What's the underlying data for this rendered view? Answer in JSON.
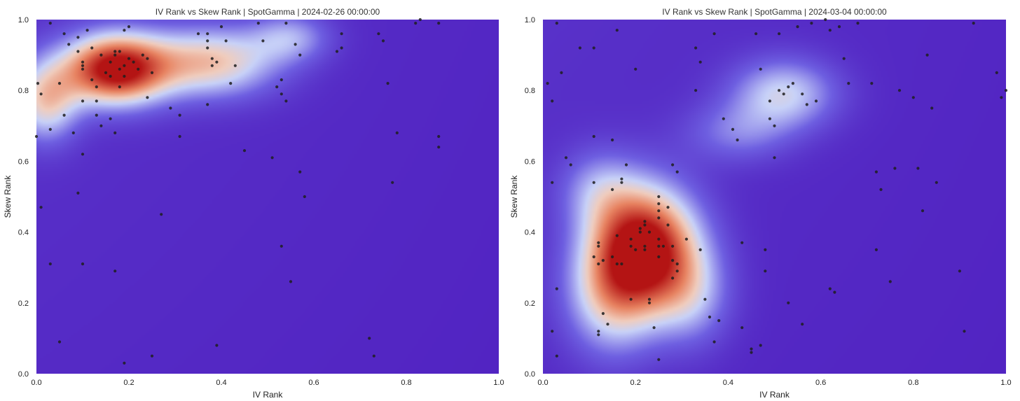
{
  "colors": {
    "low": "#5020c0",
    "mid": "#c8d2f8",
    "high": "#b41414",
    "point": "#1e1e1e"
  },
  "chart_data": [
    {
      "type": "scatter",
      "overlay": "density-heatmap (coolwarm-like colormap)",
      "title": "IV Rank vs Skew Rank | SpotGamma | 2024-02-26 00:00:00",
      "xlabel": "IV Rank",
      "ylabel": "Skew Rank",
      "xlim": [
        0,
        1
      ],
      "ylim": [
        0,
        1
      ],
      "xticks": [
        "0.0",
        "0.2",
        "0.4",
        "0.6",
        "0.8",
        "1.0"
      ],
      "yticks": [
        "0.0",
        "0.2",
        "0.4",
        "0.6",
        "0.8",
        "1.0"
      ],
      "grid": false,
      "legend": "none",
      "density_peaks": [
        {
          "x": 0.17,
          "y": 0.86,
          "weight": 1.0,
          "sx": 0.08,
          "sy": 0.07
        },
        {
          "x": 0.38,
          "y": 0.88,
          "weight": 0.55,
          "sx": 0.1,
          "sy": 0.07
        },
        {
          "x": 0.02,
          "y": 0.77,
          "weight": 0.5,
          "sx": 0.05,
          "sy": 0.08
        },
        {
          "x": 0.55,
          "y": 0.95,
          "weight": 0.3,
          "sx": 0.06,
          "sy": 0.05
        }
      ],
      "points": [
        [
          0.003,
          0.82
        ],
        [
          0.01,
          0.79
        ],
        [
          0.03,
          0.99
        ],
        [
          0.03,
          0.69
        ],
        [
          0.05,
          0.82
        ],
        [
          0.06,
          0.96
        ],
        [
          0.07,
          0.93
        ],
        [
          0.08,
          0.68
        ],
        [
          0.06,
          0.73
        ],
        [
          0.09,
          0.95
        ],
        [
          0.09,
          0.91
        ],
        [
          0.1,
          0.87
        ],
        [
          0.1,
          0.86
        ],
        [
          0.1,
          0.88
        ],
        [
          0.11,
          0.97
        ],
        [
          0.12,
          0.83
        ],
        [
          0.12,
          0.92
        ],
        [
          0.13,
          0.81
        ],
        [
          0.13,
          0.77
        ],
        [
          0.13,
          0.73
        ],
        [
          0.14,
          0.9
        ],
        [
          0.15,
          0.85
        ],
        [
          0.16,
          0.84
        ],
        [
          0.16,
          0.88
        ],
        [
          0.17,
          0.9
        ],
        [
          0.17,
          0.91
        ],
        [
          0.18,
          0.91
        ],
        [
          0.18,
          0.86
        ],
        [
          0.19,
          0.84
        ],
        [
          0.19,
          0.87
        ],
        [
          0.2,
          0.89
        ],
        [
          0.21,
          0.88
        ],
        [
          0.22,
          0.86
        ],
        [
          0.18,
          0.81
        ],
        [
          0.19,
          0.97
        ],
        [
          0.2,
          0.98
        ],
        [
          0.23,
          0.9
        ],
        [
          0.24,
          0.89
        ],
        [
          0.25,
          0.85
        ],
        [
          0.24,
          0.78
        ],
        [
          0.16,
          0.72
        ],
        [
          0.14,
          0.7
        ],
        [
          0.17,
          0.68
        ],
        [
          0.1,
          0.77
        ],
        [
          0.1,
          0.62
        ],
        [
          0.09,
          0.51
        ],
        [
          0.01,
          0.47
        ],
        [
          0.03,
          0.31
        ],
        [
          0.1,
          0.31
        ],
        [
          0.17,
          0.29
        ],
        [
          0.05,
          0.09
        ],
        [
          0.19,
          0.03
        ],
        [
          0.25,
          0.05
        ],
        [
          0.27,
          0.45
        ],
        [
          0.29,
          0.75
        ],
        [
          0.31,
          0.73
        ],
        [
          0.31,
          0.67
        ],
        [
          0.35,
          0.96
        ],
        [
          0.37,
          0.96
        ],
        [
          0.37,
          0.94
        ],
        [
          0.37,
          0.92
        ],
        [
          0.38,
          0.89
        ],
        [
          0.38,
          0.87
        ],
        [
          0.39,
          0.88
        ],
        [
          0.4,
          0.98
        ],
        [
          0.41,
          0.94
        ],
        [
          0.42,
          0.82
        ],
        [
          0.43,
          0.87
        ],
        [
          0.37,
          0.76
        ],
        [
          0.45,
          0.63
        ],
        [
          0.39,
          0.08
        ],
        [
          0.48,
          0.99
        ],
        [
          0.49,
          0.94
        ],
        [
          0.51,
          0.61
        ],
        [
          0.52,
          0.81
        ],
        [
          0.53,
          0.83
        ],
        [
          0.53,
          0.79
        ],
        [
          0.53,
          0.36
        ],
        [
          0.54,
          0.77
        ],
        [
          0.54,
          0.99
        ],
        [
          0.55,
          0.26
        ],
        [
          0.56,
          0.93
        ],
        [
          0.57,
          0.9
        ],
        [
          0.57,
          0.57
        ],
        [
          0.58,
          0.5
        ],
        [
          0.65,
          0.91
        ],
        [
          0.66,
          0.96
        ],
        [
          0.66,
          0.92
        ],
        [
          0.74,
          0.96
        ],
        [
          0.75,
          0.94
        ],
        [
          0.76,
          0.82
        ],
        [
          0.77,
          0.54
        ],
        [
          0.78,
          0.68
        ],
        [
          0.72,
          0.1
        ],
        [
          0.73,
          0.05
        ],
        [
          0.82,
          0.99
        ],
        [
          0.83,
          1.0
        ],
        [
          0.87,
          0.99
        ],
        [
          0.87,
          0.67
        ],
        [
          0.87,
          0.64
        ],
        [
          0.0,
          0.67
        ]
      ]
    },
    {
      "type": "scatter",
      "overlay": "density-heatmap (coolwarm-like colormap)",
      "title": "IV Rank vs Skew Rank | SpotGamma | 2024-03-04 00:00:00",
      "xlabel": "IV Rank",
      "ylabel": "Skew Rank",
      "xlim": [
        0,
        1
      ],
      "ylim": [
        0,
        1
      ],
      "xticks": [
        "0.0",
        "0.2",
        "0.4",
        "0.6",
        "0.8",
        "1.0"
      ],
      "yticks": [
        "0.0",
        "0.2",
        "0.4",
        "0.6",
        "0.8",
        "1.0"
      ],
      "grid": false,
      "legend": "none",
      "density_peaks": [
        {
          "x": 0.22,
          "y": 0.36,
          "weight": 1.0,
          "sx": 0.08,
          "sy": 0.12
        },
        {
          "x": 0.15,
          "y": 0.22,
          "weight": 0.45,
          "sx": 0.07,
          "sy": 0.12
        },
        {
          "x": 0.32,
          "y": 0.22,
          "weight": 0.3,
          "sx": 0.06,
          "sy": 0.1
        },
        {
          "x": 0.52,
          "y": 0.79,
          "weight": 0.42,
          "sx": 0.08,
          "sy": 0.07
        },
        {
          "x": 0.42,
          "y": 0.68,
          "weight": 0.22,
          "sx": 0.08,
          "sy": 0.06
        },
        {
          "x": 0.12,
          "y": 0.52,
          "weight": 0.25,
          "sx": 0.06,
          "sy": 0.08
        }
      ],
      "points": [
        [
          0.01,
          0.82
        ],
        [
          0.02,
          0.77
        ],
        [
          0.03,
          0.99
        ],
        [
          0.04,
          0.85
        ],
        [
          0.02,
          0.54
        ],
        [
          0.03,
          0.24
        ],
        [
          0.02,
          0.12
        ],
        [
          0.03,
          0.05
        ],
        [
          0.05,
          0.61
        ],
        [
          0.06,
          0.59
        ],
        [
          0.08,
          0.92
        ],
        [
          0.11,
          0.92
        ],
        [
          0.11,
          0.67
        ],
        [
          0.11,
          0.54
        ],
        [
          0.11,
          0.33
        ],
        [
          0.12,
          0.37
        ],
        [
          0.12,
          0.36
        ],
        [
          0.12,
          0.31
        ],
        [
          0.12,
          0.11
        ],
        [
          0.12,
          0.12
        ],
        [
          0.13,
          0.32
        ],
        [
          0.13,
          0.17
        ],
        [
          0.14,
          0.14
        ],
        [
          0.15,
          0.66
        ],
        [
          0.15,
          0.52
        ],
        [
          0.15,
          0.33
        ],
        [
          0.16,
          0.39
        ],
        [
          0.16,
          0.31
        ],
        [
          0.16,
          0.97
        ],
        [
          0.17,
          0.54
        ],
        [
          0.17,
          0.55
        ],
        [
          0.17,
          0.31
        ],
        [
          0.18,
          0.59
        ],
        [
          0.19,
          0.38
        ],
        [
          0.19,
          0.36
        ],
        [
          0.19,
          0.21
        ],
        [
          0.2,
          0.86
        ],
        [
          0.2,
          0.35
        ],
        [
          0.21,
          0.41
        ],
        [
          0.21,
          0.4
        ],
        [
          0.22,
          0.43
        ],
        [
          0.22,
          0.42
        ],
        [
          0.22,
          0.36
        ],
        [
          0.22,
          0.35
        ],
        [
          0.23,
          0.4
        ],
        [
          0.23,
          0.21
        ],
        [
          0.23,
          0.2
        ],
        [
          0.24,
          0.13
        ],
        [
          0.25,
          0.5
        ],
        [
          0.25,
          0.48
        ],
        [
          0.25,
          0.46
        ],
        [
          0.25,
          0.44
        ],
        [
          0.25,
          0.38
        ],
        [
          0.25,
          0.36
        ],
        [
          0.25,
          0.33
        ],
        [
          0.25,
          0.04
        ],
        [
          0.26,
          0.36
        ],
        [
          0.27,
          0.47
        ],
        [
          0.27,
          0.42
        ],
        [
          0.28,
          0.59
        ],
        [
          0.28,
          0.36
        ],
        [
          0.28,
          0.32
        ],
        [
          0.28,
          0.27
        ],
        [
          0.29,
          0.31
        ],
        [
          0.29,
          0.29
        ],
        [
          0.29,
          0.57
        ],
        [
          0.31,
          0.38
        ],
        [
          0.33,
          0.92
        ],
        [
          0.33,
          0.8
        ],
        [
          0.34,
          0.88
        ],
        [
          0.34,
          0.35
        ],
        [
          0.35,
          0.21
        ],
        [
          0.36,
          0.16
        ],
        [
          0.37,
          0.09
        ],
        [
          0.37,
          0.96
        ],
        [
          0.38,
          0.15
        ],
        [
          0.39,
          0.72
        ],
        [
          0.41,
          0.69
        ],
        [
          0.42,
          0.66
        ],
        [
          0.43,
          0.37
        ],
        [
          0.43,
          0.13
        ],
        [
          0.45,
          0.07
        ],
        [
          0.45,
          0.06
        ],
        [
          0.46,
          0.96
        ],
        [
          0.47,
          0.86
        ],
        [
          0.47,
          0.08
        ],
        [
          0.48,
          0.35
        ],
        [
          0.48,
          0.29
        ],
        [
          0.49,
          0.77
        ],
        [
          0.49,
          0.72
        ],
        [
          0.5,
          0.7
        ],
        [
          0.5,
          0.61
        ],
        [
          0.51,
          0.8
        ],
        [
          0.52,
          0.79
        ],
        [
          0.53,
          0.81
        ],
        [
          0.53,
          0.2
        ],
        [
          0.54,
          0.82
        ],
        [
          0.55,
          0.98
        ],
        [
          0.56,
          0.79
        ],
        [
          0.56,
          0.14
        ],
        [
          0.57,
          0.76
        ],
        [
          0.58,
          0.99
        ],
        [
          0.59,
          0.77
        ],
        [
          0.62,
          0.97
        ],
        [
          0.62,
          0.24
        ],
        [
          0.63,
          0.23
        ],
        [
          0.64,
          0.98
        ],
        [
          0.65,
          0.89
        ],
        [
          0.66,
          0.82
        ],
        [
          0.68,
          0.99
        ],
        [
          0.71,
          0.82
        ],
        [
          0.72,
          0.57
        ],
        [
          0.72,
          0.35
        ],
        [
          0.73,
          0.52
        ],
        [
          0.75,
          0.26
        ],
        [
          0.76,
          0.58
        ],
        [
          0.77,
          0.8
        ],
        [
          0.8,
          0.78
        ],
        [
          0.81,
          0.58
        ],
        [
          0.82,
          0.46
        ],
        [
          0.83,
          0.9
        ],
        [
          0.84,
          0.75
        ],
        [
          0.85,
          0.54
        ],
        [
          0.9,
          0.29
        ],
        [
          0.91,
          0.12
        ],
        [
          0.93,
          0.99
        ],
        [
          0.98,
          0.85
        ],
        [
          0.99,
          0.78
        ],
        [
          1.0,
          0.8
        ],
        [
          0.61,
          1.0
        ],
        [
          0.51,
          0.96
        ]
      ]
    }
  ]
}
